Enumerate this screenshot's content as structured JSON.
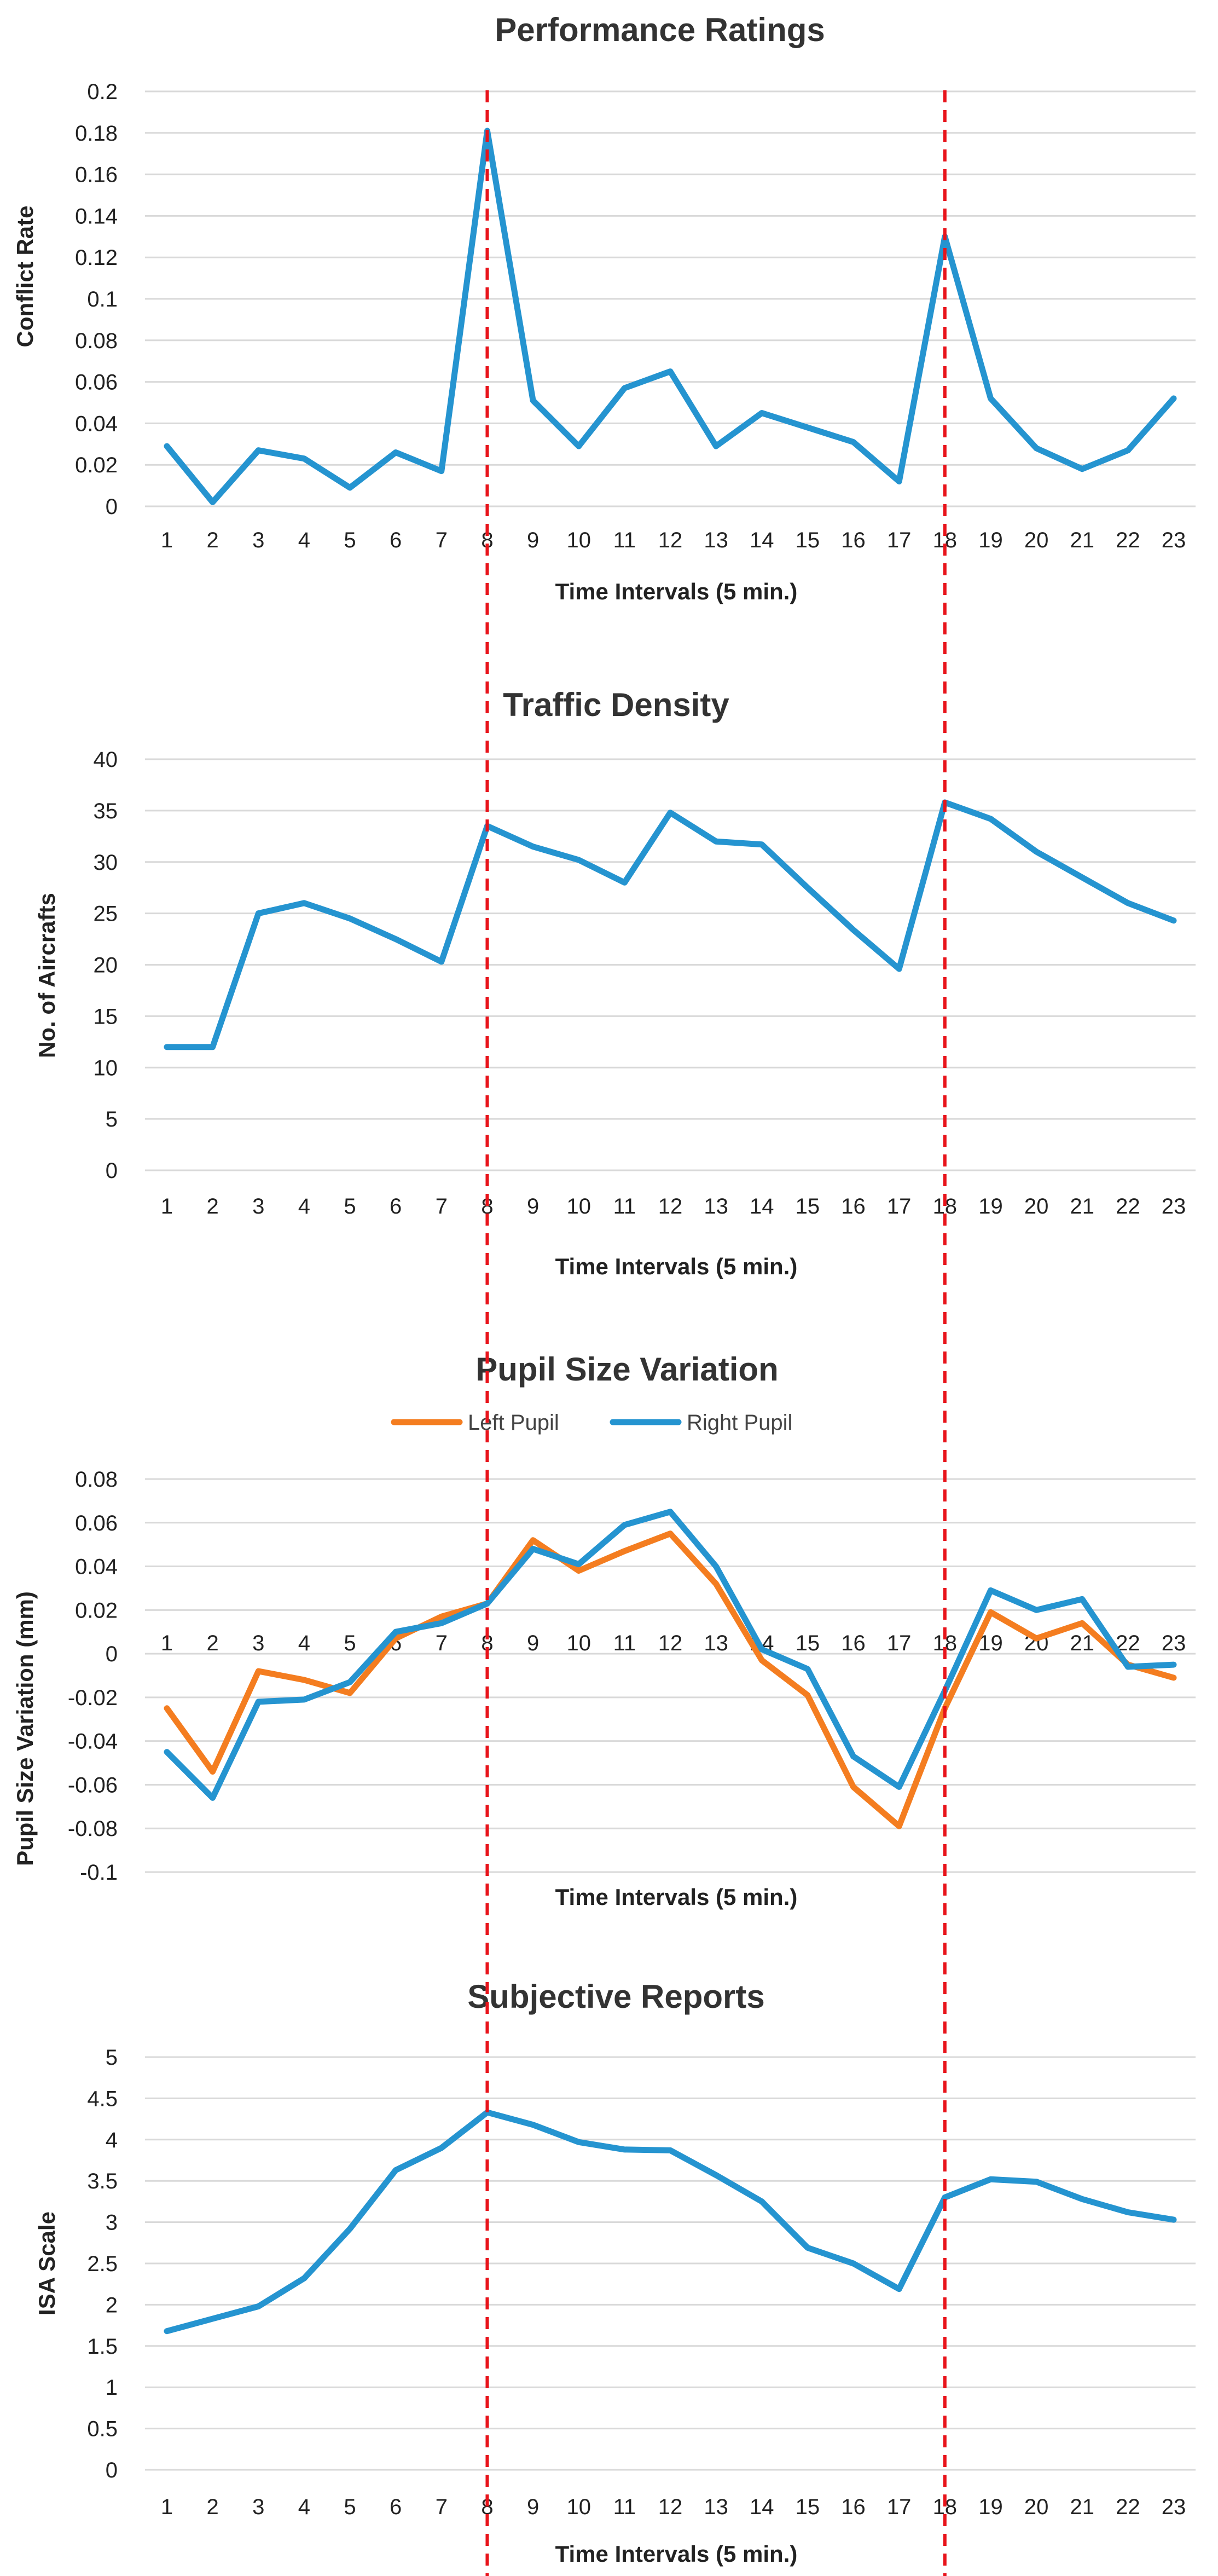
{
  "colors": {
    "series_blue": "#2594d0",
    "series_orange": "#f47d20",
    "grid": "#d9d9d9",
    "marker": "#e8141b",
    "axis": "#bfbfbf"
  },
  "marker_lines": {
    "x_values": [
      8,
      18
    ],
    "style": "dashed"
  },
  "chart_data": [
    {
      "type": "line",
      "title": "Performance Ratings",
      "xlabel": "Time Intervals (5 min.)",
      "ylabel": "Conflict Rate",
      "categories": [
        "1",
        "2",
        "3",
        "4",
        "5",
        "6",
        "7",
        "8",
        "9",
        "10",
        "11",
        "12",
        "13",
        "14",
        "15",
        "16",
        "17",
        "18",
        "19",
        "20",
        "21",
        "22",
        "23"
      ],
      "ylim": [
        0,
        0.2
      ],
      "yticks": [
        "0",
        "0.02",
        "0.04",
        "0.06",
        "0.08",
        "0.1",
        "0.12",
        "0.14",
        "0.16",
        "0.18",
        "0.2"
      ],
      "grid": true,
      "series": [
        {
          "name": "Conflict Rate",
          "color": "#2594d0",
          "values": [
            0.029,
            0.002,
            0.027,
            0.023,
            0.009,
            0.026,
            0.017,
            0.181,
            0.051,
            0.029,
            0.057,
            0.065,
            0.029,
            0.045,
            0.038,
            0.031,
            0.012,
            0.13,
            0.052,
            0.028,
            0.018,
            0.027,
            0.052
          ]
        }
      ]
    },
    {
      "type": "line",
      "title": "Traffic Density",
      "xlabel": "Time Intervals (5 min.)",
      "ylabel": "No. of Aircrafts",
      "categories": [
        "1",
        "2",
        "3",
        "4",
        "5",
        "6",
        "7",
        "8",
        "9",
        "10",
        "11",
        "12",
        "13",
        "14",
        "15",
        "16",
        "17",
        "18",
        "19",
        "20",
        "21",
        "22",
        "23"
      ],
      "ylim": [
        0,
        40
      ],
      "yticks": [
        "0",
        "5",
        "10",
        "15",
        "20",
        "25",
        "30",
        "35",
        "40"
      ],
      "grid": true,
      "series": [
        {
          "name": "No. of Aircrafts",
          "color": "#2594d0",
          "values": [
            12,
            12,
            25,
            26,
            24.5,
            22.5,
            20.3,
            33.5,
            31.5,
            30.2,
            28,
            34.8,
            32,
            31.7,
            27.5,
            23.4,
            19.6,
            35.8,
            34.2,
            31,
            28.5,
            26,
            24.3
          ]
        }
      ]
    },
    {
      "type": "line",
      "title": "Pupil Size Variation",
      "xlabel": "Time Intervals (5 min.)",
      "ylabel": "Pupil Size Variation (mm)",
      "categories": [
        "1",
        "2",
        "3",
        "4",
        "5",
        "6",
        "7",
        "8",
        "9",
        "10",
        "11",
        "12",
        "13",
        "14",
        "15",
        "16",
        "17",
        "18",
        "19",
        "20",
        "21",
        "22",
        "23"
      ],
      "ylim": [
        -0.1,
        0.08
      ],
      "yticks": [
        "-0.1",
        "-0.08",
        "-0.06",
        "-0.04",
        "-0.02",
        "0",
        "0.02",
        "0.04",
        "0.06",
        "0.08"
      ],
      "grid": true,
      "legend": {
        "position": "top-center",
        "entries": [
          "Left Pupil",
          "Right Pupil"
        ]
      },
      "series": [
        {
          "name": "Left Pupil",
          "color": "#f47d20",
          "values": [
            -0.025,
            -0.054,
            -0.008,
            -0.012,
            -0.018,
            0.007,
            0.017,
            0.023,
            0.052,
            0.038,
            0.047,
            0.055,
            0.032,
            -0.003,
            -0.019,
            -0.061,
            -0.079,
            -0.025,
            0.019,
            0.007,
            0.014,
            -0.005,
            -0.011
          ]
        },
        {
          "name": "Right Pupil",
          "color": "#2594d0",
          "values": [
            -0.045,
            -0.066,
            -0.022,
            -0.021,
            -0.013,
            0.01,
            0.014,
            0.023,
            0.048,
            0.041,
            0.059,
            0.065,
            0.04,
            0.002,
            -0.007,
            -0.047,
            -0.061,
            -0.017,
            0.029,
            0.02,
            0.025,
            -0.006,
            -0.005
          ]
        }
      ]
    },
    {
      "type": "line",
      "title": "Subjective Reports",
      "xlabel": "Time Intervals (5 min.)",
      "ylabel": "ISA Scale",
      "categories": [
        "1",
        "2",
        "3",
        "4",
        "5",
        "6",
        "7",
        "8",
        "9",
        "10",
        "11",
        "12",
        "13",
        "14",
        "15",
        "16",
        "17",
        "18",
        "19",
        "20",
        "21",
        "22",
        "23"
      ],
      "ylim": [
        0,
        5
      ],
      "yticks": [
        "0",
        "0.5",
        "1",
        "1.5",
        "2",
        "2.5",
        "3",
        "3.5",
        "4",
        "4.5",
        "5"
      ],
      "grid": true,
      "series": [
        {
          "name": "ISA Scale",
          "color": "#2594d0",
          "values": [
            1.68,
            1.83,
            1.98,
            2.32,
            2.92,
            3.63,
            3.9,
            4.33,
            4.18,
            3.97,
            3.88,
            3.87,
            3.57,
            3.25,
            2.69,
            2.5,
            2.19,
            3.3,
            3.52,
            3.49,
            3.28,
            3.12,
            3.03
          ]
        }
      ]
    }
  ]
}
